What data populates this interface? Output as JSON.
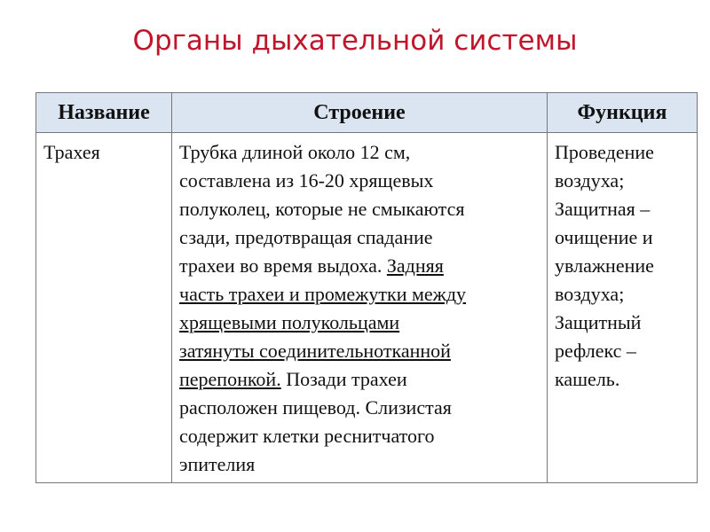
{
  "title": "Органы дыхательной системы",
  "table": {
    "headers": [
      "Название",
      "Строение",
      "Функция"
    ],
    "rows": [
      {
        "name": "Трахея",
        "structure": {
          "l1": "Трубка длиной около 12 см,",
          "l2": "составлена из 16-20 хрящевых",
          "l3": "полуколец, которые не смыкаются",
          "l4": "сзади, предотвращая спадание",
          "l5a": "трахеи во время выдоха. ",
          "l5b": "Задняя",
          "l6": "часть трахеи и промежутки между",
          "l7": "хрящевыми полукольцами",
          "l8": "затянуты соединительнотканной",
          "l9a": "перепонкой.",
          "l9b": " Позади трахеи",
          "l10": "расположен пищевод. Слизистая",
          "l11": "содержит клетки реснитчатого",
          "l12": "эпителия"
        },
        "function": [
          "Проведение",
          "воздуха;",
          "Защитная –",
          "очищение и",
          "увлажнение",
          "воздуха;",
          "Защитный",
          "рефлекс –",
          "кашель."
        ]
      }
    ]
  },
  "colors": {
    "title": "#c0152a",
    "header_bg": "#dbe5f1"
  }
}
